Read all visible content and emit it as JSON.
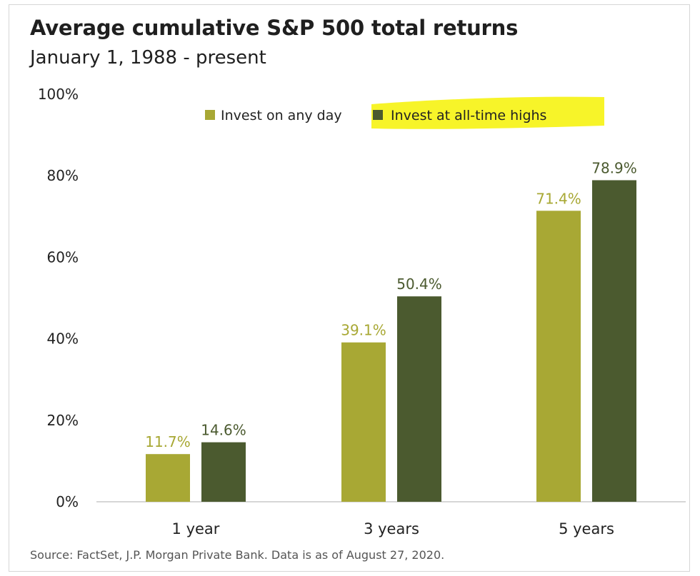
{
  "header": {
    "title": "Average cumulative S&P 500 total returns",
    "subtitle": "January 1, 1988 - present"
  },
  "footer": {
    "source": "Source: FactSet, J.P. Morgan Private Bank. Data is as of August 27, 2020."
  },
  "colors": {
    "series_any_day": "#a8a834",
    "series_all_time_highs": "#4b5a2f",
    "highlight": "#f7f31e",
    "axis": "#c8c8c8"
  },
  "chart_data": {
    "type": "bar",
    "title": "Average cumulative S&P 500 total returns",
    "subtitle": "January 1, 1988 - present",
    "categories": [
      "1 year",
      "3 years",
      "5 years"
    ],
    "series": [
      {
        "name": "Invest on any day",
        "values": [
          11.7,
          39.1,
          71.4
        ],
        "labels": [
          "11.7%",
          "39.1%",
          "71.4%"
        ]
      },
      {
        "name": "Invest at all-time highs",
        "values": [
          14.6,
          50.4,
          78.9
        ],
        "labels": [
          "14.6%",
          "50.4%",
          "78.9%"
        ]
      }
    ],
    "ylim": [
      0,
      100
    ],
    "yticks": [
      0,
      20,
      40,
      60,
      80,
      100
    ],
    "ytick_labels": [
      "0%",
      "20%",
      "40%",
      "60%",
      "80%",
      "100%"
    ],
    "grid": false,
    "legend": "top-center",
    "legend_highlighted": "Invest at all-time highs",
    "xlabel": "",
    "ylabel": ""
  }
}
